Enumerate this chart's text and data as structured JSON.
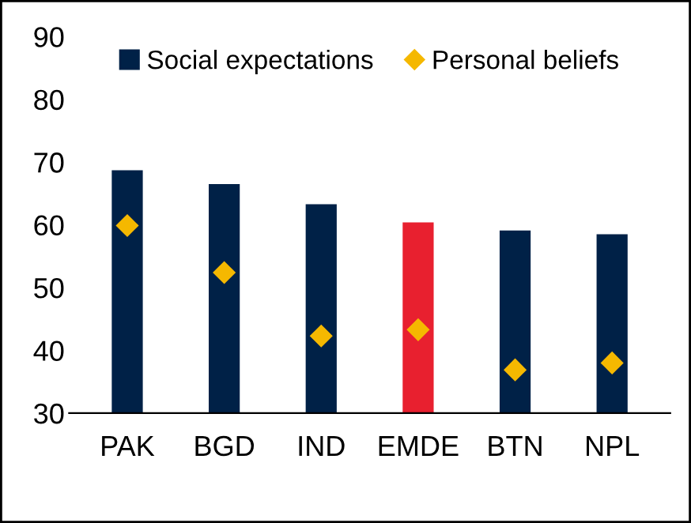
{
  "chart_data": {
    "type": "bar",
    "categories": [
      "PAK",
      "BGD",
      "IND",
      "EMDE",
      "BTN",
      "NPL"
    ],
    "series": [
      {
        "name": "Social expectations",
        "color": "#002147",
        "colors": [
          "#002147",
          "#002147",
          "#002147",
          "#e8202f",
          "#002147",
          "#002147"
        ],
        "values": [
          68.7,
          66.5,
          63.3,
          60.4,
          59.1,
          58.5
        ]
      },
      {
        "name": "Personal beliefs",
        "type": "scatter",
        "color": "#f5b800",
        "marker": "diamond",
        "x": [
          "PAK",
          "BGD",
          "IND",
          "EMDE",
          "BTN",
          "NPL"
        ],
        "values": [
          59.9,
          52.4,
          42.3,
          43.3,
          36.9,
          38.0
        ]
      }
    ],
    "ylim": [
      30,
      90
    ],
    "yticks": [
      30,
      40,
      50,
      60,
      70,
      80,
      90
    ],
    "grid": false,
    "legend": "top"
  }
}
